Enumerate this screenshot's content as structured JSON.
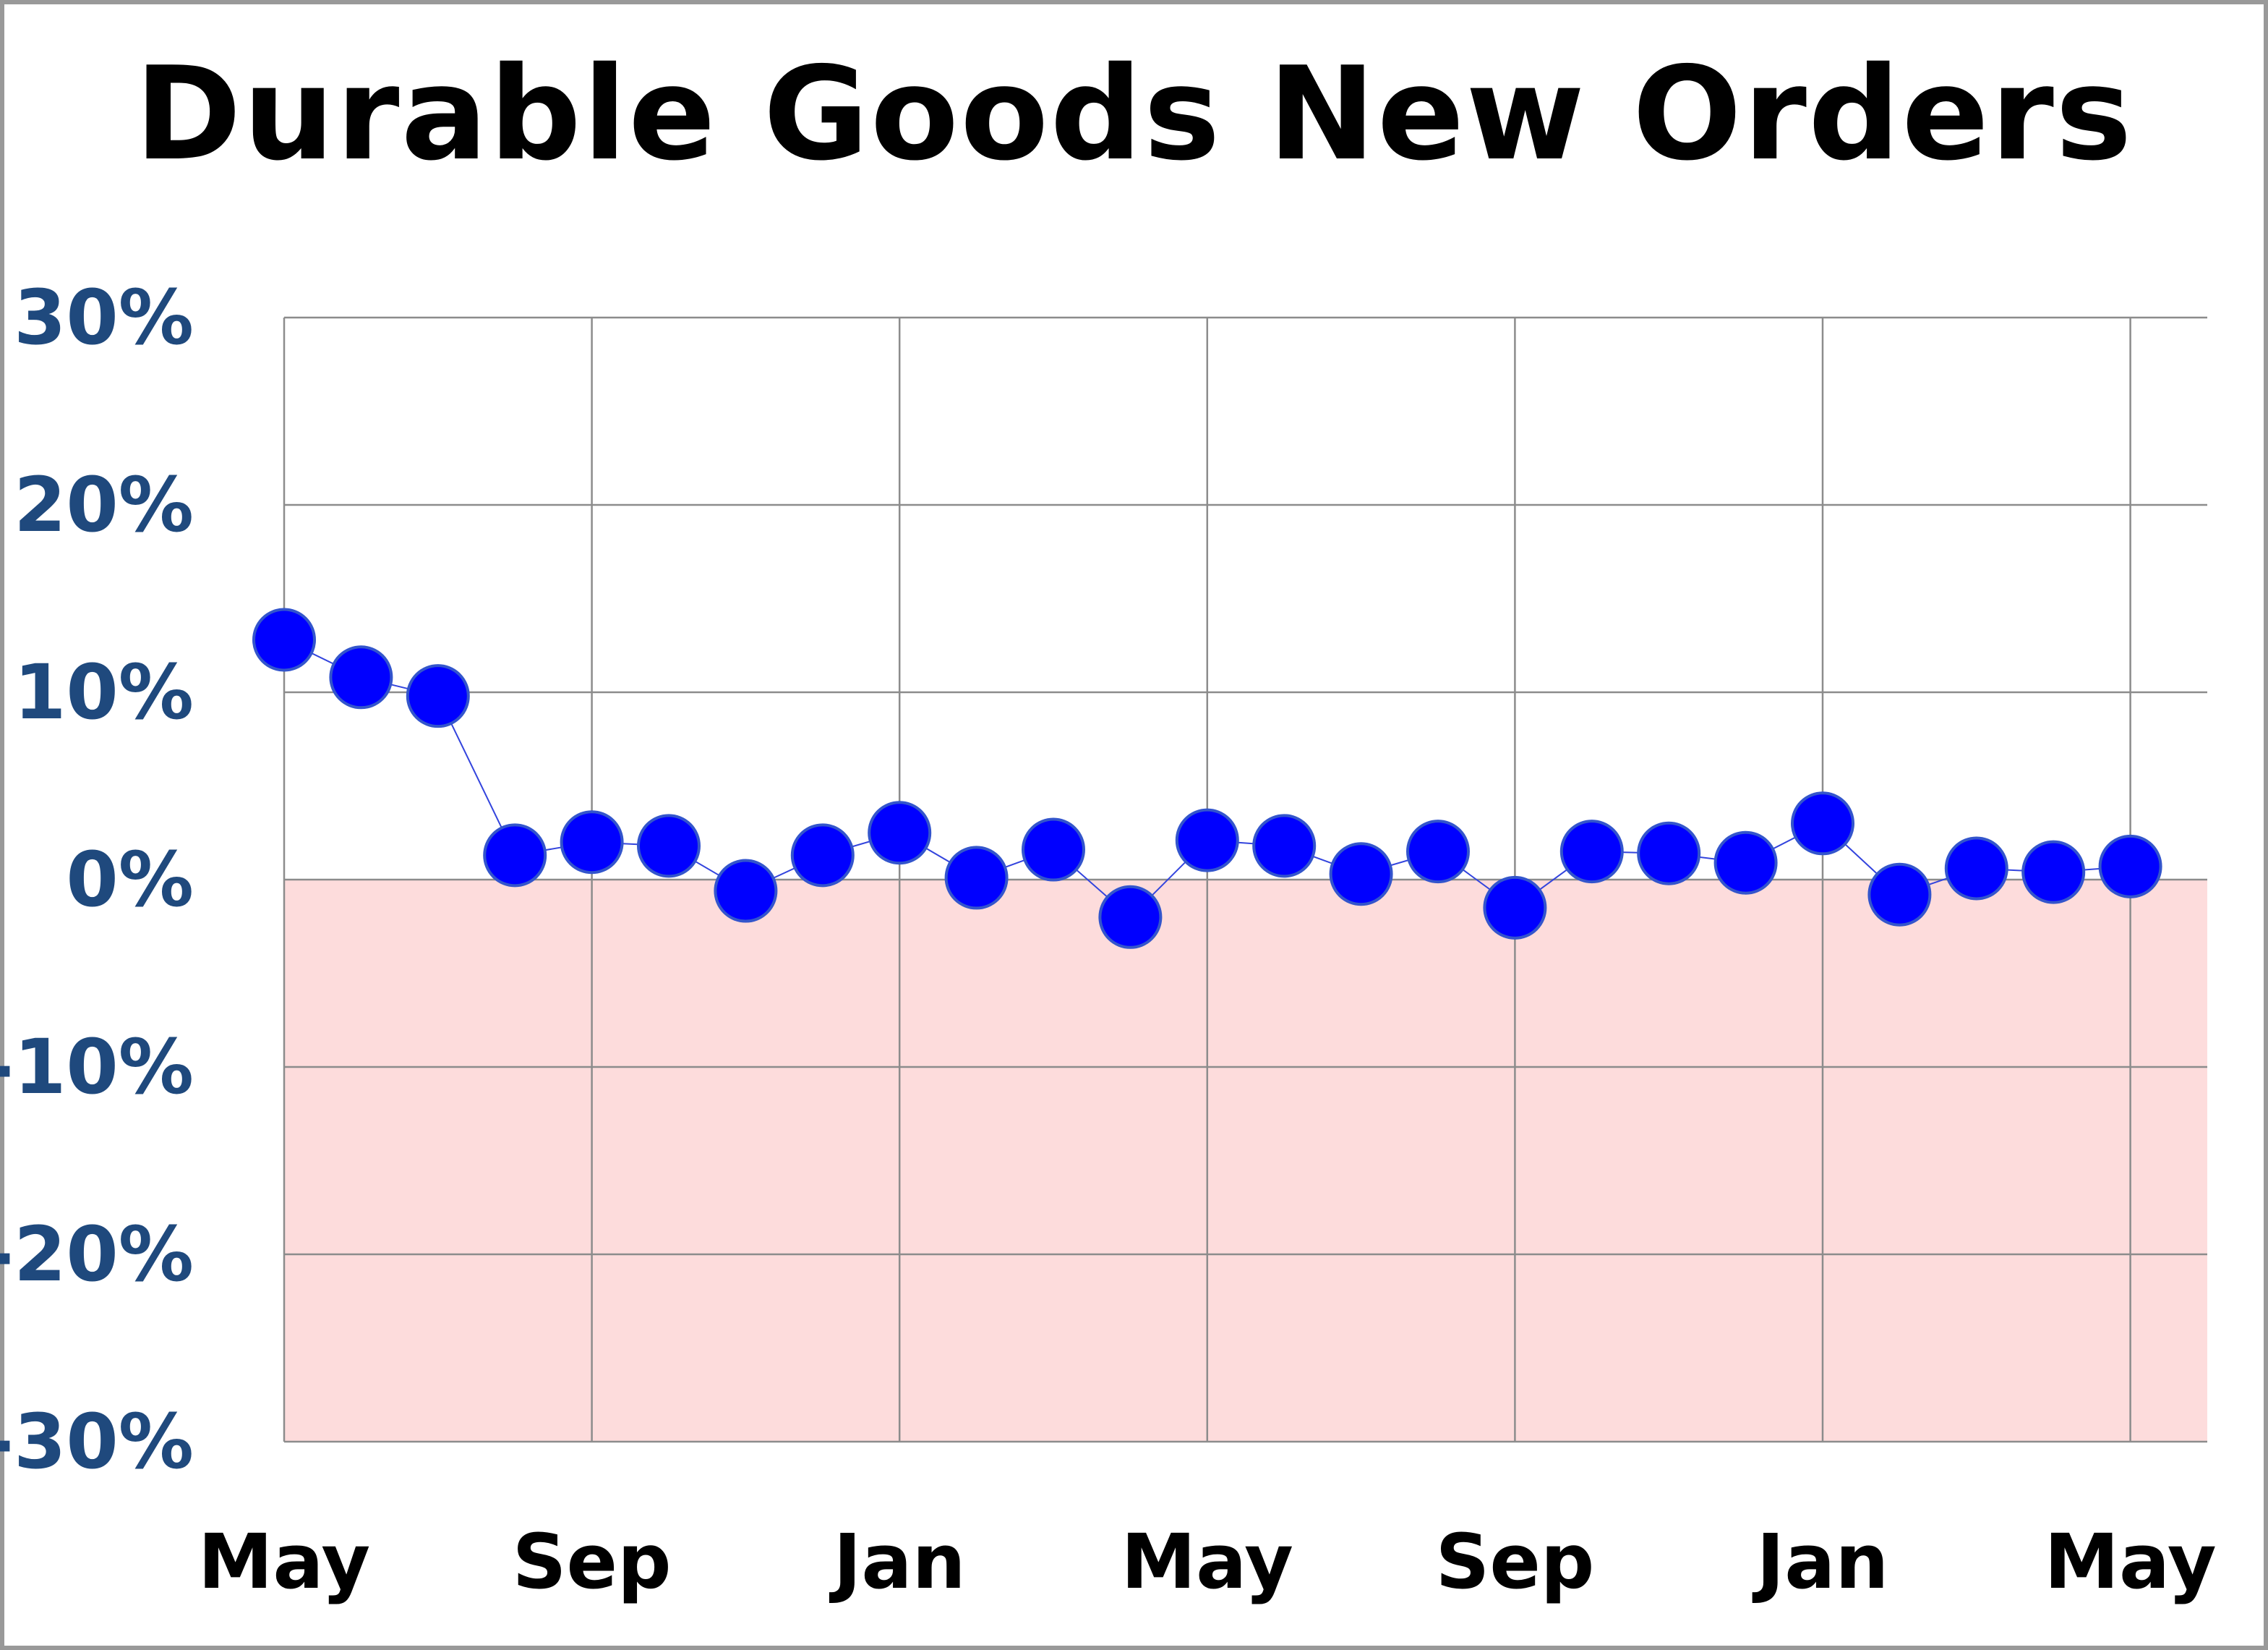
{
  "chart_data": {
    "type": "scatter",
    "title": "Durable Goods New Orders",
    "xlabel": "",
    "ylabel": "",
    "ylim": [
      -30,
      30
    ],
    "ytick_values": [
      30,
      20,
      10,
      0,
      -10,
      -20,
      -30
    ],
    "ytick_labels": [
      "30%",
      "20%",
      "10%",
      "0%",
      "-10%",
      "-20%",
      "-30%"
    ],
    "xtick_labels": [
      "May",
      "Sep",
      "Jan",
      "May",
      "Sep",
      "Jan",
      "May"
    ],
    "xtick_indices": [
      0,
      4,
      8,
      12,
      16,
      20,
      24
    ],
    "grid": true,
    "negative_region_color": "#fddcdc",
    "marker_color": "#0000ff",
    "marker_edge_color": "#3355cc",
    "line_color": "#3344dd",
    "axis_text_color": "#1f497d",
    "series": [
      {
        "values": [
          12.8,
          10.8,
          9.8,
          1.3,
          2.0,
          1.8,
          -0.6,
          1.3,
          2.5,
          0.1,
          1.6,
          -2.0,
          2.1,
          1.8,
          0.3,
          1.5,
          -1.5,
          1.5,
          1.4,
          0.9,
          3.0,
          -0.8,
          0.6,
          0.4,
          0.7
        ]
      }
    ]
  }
}
